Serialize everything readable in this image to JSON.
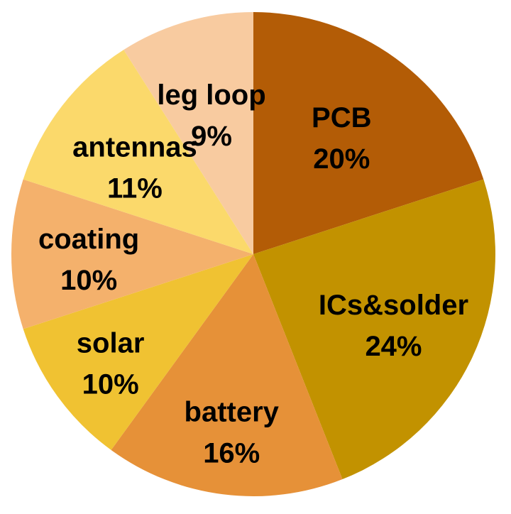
{
  "chart_data": {
    "type": "pie",
    "title": "",
    "start_angle_deg": 0,
    "direction": "clockwise",
    "slices": [
      {
        "label": "PCB",
        "value": 20,
        "value_label": "20%",
        "color": "#B35C06"
      },
      {
        "label": "ICs&solder",
        "value": 24,
        "value_label": "24%",
        "color": "#C29200"
      },
      {
        "label": "battery",
        "value": 16,
        "value_label": "16%",
        "color": "#E69138"
      },
      {
        "label": "solar",
        "value": 10,
        "value_label": "10%",
        "color": "#F0C232"
      },
      {
        "label": "coating",
        "value": 10,
        "value_label": "10%",
        "color": "#F4B16C"
      },
      {
        "label": "antennas",
        "value": 11,
        "value_label": "11%",
        "color": "#FBD96B"
      },
      {
        "label": "leg loop",
        "value": 9,
        "value_label": "9%",
        "color": "#F8CBA0"
      }
    ]
  }
}
